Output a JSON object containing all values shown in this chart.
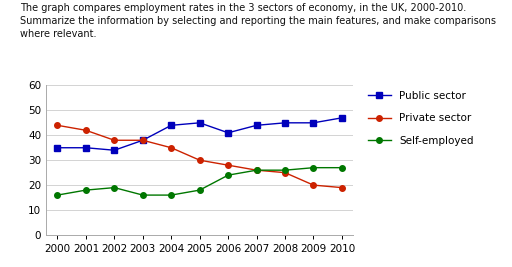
{
  "title_text": "The graph compares employment rates in the 3 sectors of economy, in the UK, 2000-2010.\nSummarize the information by selecting and reporting the main features, and make comparisons\nwhere relevant.",
  "years": [
    2000,
    2001,
    2002,
    2003,
    2004,
    2005,
    2006,
    2007,
    2008,
    2009,
    2010
  ],
  "public_sector": [
    35,
    35,
    34,
    38,
    44,
    45,
    41,
    44,
    45,
    45,
    47
  ],
  "private_sector": [
    44,
    42,
    38,
    38,
    35,
    30,
    28,
    26,
    25,
    20,
    19
  ],
  "self_employed": [
    16,
    18,
    19,
    16,
    16,
    18,
    24,
    26,
    26,
    27,
    27
  ],
  "public_color": "#0000bb",
  "private_color": "#cc2200",
  "self_color": "#007700",
  "ylim": [
    0,
    60
  ],
  "yticks": [
    0,
    10,
    20,
    30,
    40,
    50,
    60
  ],
  "legend_labels": [
    "Public sector",
    "Private sector",
    "Self-employed"
  ],
  "title_fontsize": 7.0,
  "tick_fontsize": 7.5,
  "legend_fontsize": 7.5,
  "bg_color": "#ffffff"
}
